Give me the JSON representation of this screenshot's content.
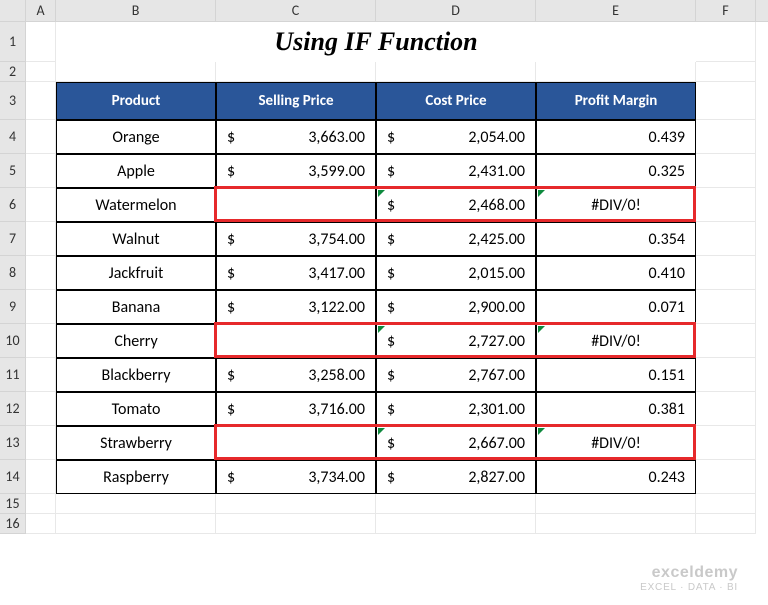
{
  "columns": {
    "labels": [
      "A",
      "B",
      "C",
      "D",
      "E",
      "F"
    ],
    "widths": [
      30,
      160,
      160,
      160,
      160,
      60
    ]
  },
  "rowLabels": [
    "1",
    "2",
    "3",
    "4",
    "5",
    "6",
    "7",
    "8",
    "9",
    "10",
    "11",
    "12",
    "13",
    "14",
    "15",
    "16"
  ],
  "title": "Using IF Function",
  "headers": {
    "product": "Product",
    "selling": "Selling Price",
    "cost": "Cost Price",
    "margin": "Profit Margin"
  },
  "rows": [
    {
      "product": "Orange",
      "selling": "3,663.00",
      "cost": "2,054.00",
      "margin": "0.439",
      "hasSelling": true,
      "error": false
    },
    {
      "product": "Apple",
      "selling": "3,599.00",
      "cost": "2,431.00",
      "margin": "0.325",
      "hasSelling": true,
      "error": false
    },
    {
      "product": "Watermelon",
      "selling": "",
      "cost": "2,468.00",
      "margin": "#DIV/0!",
      "hasSelling": false,
      "error": true
    },
    {
      "product": "Walnut",
      "selling": "3,754.00",
      "cost": "2,425.00",
      "margin": "0.354",
      "hasSelling": true,
      "error": false
    },
    {
      "product": "Jackfruit",
      "selling": "3,417.00",
      "cost": "2,015.00",
      "margin": "0.410",
      "hasSelling": true,
      "error": false
    },
    {
      "product": "Banana",
      "selling": "3,122.00",
      "cost": "2,900.00",
      "margin": "0.071",
      "hasSelling": true,
      "error": false
    },
    {
      "product": "Cherry",
      "selling": "",
      "cost": "2,727.00",
      "margin": "#DIV/0!",
      "hasSelling": false,
      "error": true
    },
    {
      "product": "Blackberry",
      "selling": "3,258.00",
      "cost": "2,767.00",
      "margin": "0.151",
      "hasSelling": true,
      "error": false
    },
    {
      "product": "Tomato",
      "selling": "3,716.00",
      "cost": "2,301.00",
      "margin": "0.381",
      "hasSelling": true,
      "error": false
    },
    {
      "product": "Strawberry",
      "selling": "",
      "cost": "2,667.00",
      "margin": "#DIV/0!",
      "hasSelling": false,
      "error": true
    },
    {
      "product": "Raspberry",
      "selling": "3,734.00",
      "cost": "2,827.00",
      "margin": "0.243",
      "hasSelling": true,
      "error": false
    }
  ],
  "currency": "$",
  "watermark": {
    "top": "exceldemy",
    "bot": "EXCEL · DATA · BI"
  },
  "colors": {
    "headerBg": "#2a5699",
    "highlight": "#e6292b",
    "rowHeaderBg": "#e6e6e6"
  }
}
